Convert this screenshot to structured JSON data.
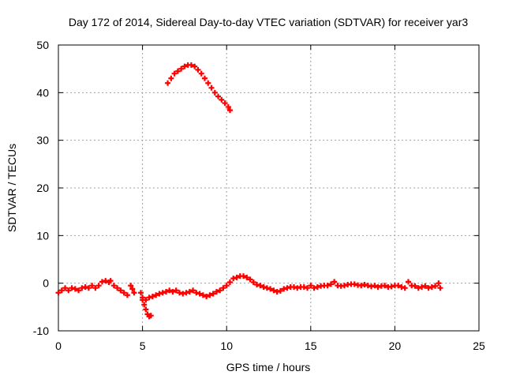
{
  "chart_data": {
    "type": "scatter",
    "title": "Day 172 of 2014, Sidereal Day-to-day VTEC variation (SDTVAR) for receiver yar3",
    "xlabel": "GPS time / hours",
    "ylabel": "SDTVAR / TECUs",
    "xlim": [
      0,
      25
    ],
    "ylim": [
      -10,
      50
    ],
    "xticks": [
      0,
      5,
      10,
      15,
      20,
      25
    ],
    "yticks": [
      -10,
      0,
      10,
      20,
      30,
      40,
      50
    ],
    "grid": true,
    "marker": "plus",
    "colors": {
      "series": "#ff0000",
      "axes": "#000000",
      "grid": "#a0a0a0"
    },
    "series": [
      {
        "name": "SDTVAR",
        "x": [
          0.0,
          0.2,
          0.4,
          0.6,
          0.8,
          1.0,
          1.2,
          1.4,
          1.6,
          1.8,
          2.0,
          2.2,
          2.4,
          2.6,
          2.8,
          3.0,
          3.1,
          3.3,
          3.5,
          3.7,
          3.9,
          4.1,
          4.3,
          4.4,
          4.5,
          4.9,
          5.0,
          5.1,
          5.2,
          5.3,
          5.4,
          5.5,
          5.0,
          5.2,
          5.4,
          5.6,
          5.8,
          6.0,
          6.2,
          6.4,
          6.6,
          6.8,
          7.0,
          7.2,
          7.4,
          7.6,
          7.8,
          8.0,
          8.2,
          8.4,
          8.6,
          8.8,
          9.0,
          9.2,
          9.4,
          9.6,
          9.8,
          10.0,
          10.2,
          6.5,
          6.7,
          6.9,
          7.1,
          7.3,
          7.5,
          7.7,
          7.9,
          8.1,
          8.3,
          8.5,
          8.7,
          8.9,
          9.1,
          9.3,
          9.5,
          9.7,
          9.9,
          10.1,
          10.2,
          10.4,
          10.6,
          10.8,
          11.0,
          11.2,
          11.4,
          11.6,
          11.8,
          12.0,
          12.2,
          12.4,
          12.6,
          12.8,
          13.0,
          13.2,
          13.4,
          13.6,
          13.8,
          14.0,
          14.2,
          14.4,
          14.6,
          14.8,
          15.0,
          15.2,
          15.4,
          15.6,
          15.8,
          16.0,
          16.2,
          16.4,
          16.6,
          16.8,
          17.0,
          17.2,
          17.4,
          17.6,
          17.8,
          18.0,
          18.2,
          18.4,
          18.6,
          18.8,
          19.0,
          19.2,
          19.4,
          19.6,
          19.8,
          20.0,
          20.2,
          20.4,
          20.6,
          20.8,
          21.0,
          21.2,
          21.4,
          21.6,
          21.8,
          22.0,
          22.2,
          22.4,
          22.6,
          22.7
        ],
        "y": [
          -2.0,
          -1.5,
          -1.0,
          -1.5,
          -1.0,
          -1.2,
          -1.5,
          -1.0,
          -0.8,
          -1.0,
          -0.5,
          -1.0,
          -0.5,
          0.3,
          0.5,
          0.2,
          0.5,
          -0.5,
          -1.0,
          -1.5,
          -2.0,
          -2.5,
          -0.5,
          -1.2,
          -2.0,
          -2.0,
          -3.0,
          -4.5,
          -5.5,
          -6.5,
          -7.0,
          -6.8,
          -3.5,
          -3.5,
          -3.0,
          -2.8,
          -2.5,
          -2.2,
          -2.0,
          -1.8,
          -1.5,
          -1.8,
          -1.5,
          -2.0,
          -2.2,
          -2.0,
          -1.8,
          -1.5,
          -2.0,
          -2.2,
          -2.5,
          -2.8,
          -2.5,
          -2.2,
          -1.8,
          -1.5,
          -1.0,
          -0.5,
          0.2,
          42.0,
          43.0,
          44.0,
          44.5,
          45.0,
          45.5,
          45.8,
          45.8,
          45.5,
          44.8,
          44.0,
          43.0,
          42.0,
          41.0,
          40.0,
          39.2,
          38.5,
          37.8,
          37.0,
          36.3,
          1.0,
          1.2,
          1.5,
          1.5,
          1.2,
          0.8,
          0.2,
          -0.3,
          -0.5,
          -0.8,
          -1.0,
          -1.2,
          -1.5,
          -1.8,
          -1.6,
          -1.2,
          -1.0,
          -0.8,
          -0.8,
          -1.0,
          -0.8,
          -0.8,
          -1.0,
          -0.5,
          -1.0,
          -0.8,
          -0.6,
          -0.5,
          -0.5,
          -0.2,
          0.3,
          -0.5,
          -0.6,
          -0.5,
          -0.3,
          -0.2,
          -0.2,
          -0.4,
          -0.5,
          -0.3,
          -0.5,
          -0.7,
          -0.5,
          -0.8,
          -0.6,
          -0.5,
          -0.8,
          -0.7,
          -0.5,
          -0.5,
          -0.8,
          -1.0,
          0.3,
          -0.5,
          -0.6,
          -1.0,
          -0.8,
          -0.6,
          -1.0,
          -0.8,
          -0.6,
          0.0,
          -1.0
        ]
      }
    ]
  }
}
